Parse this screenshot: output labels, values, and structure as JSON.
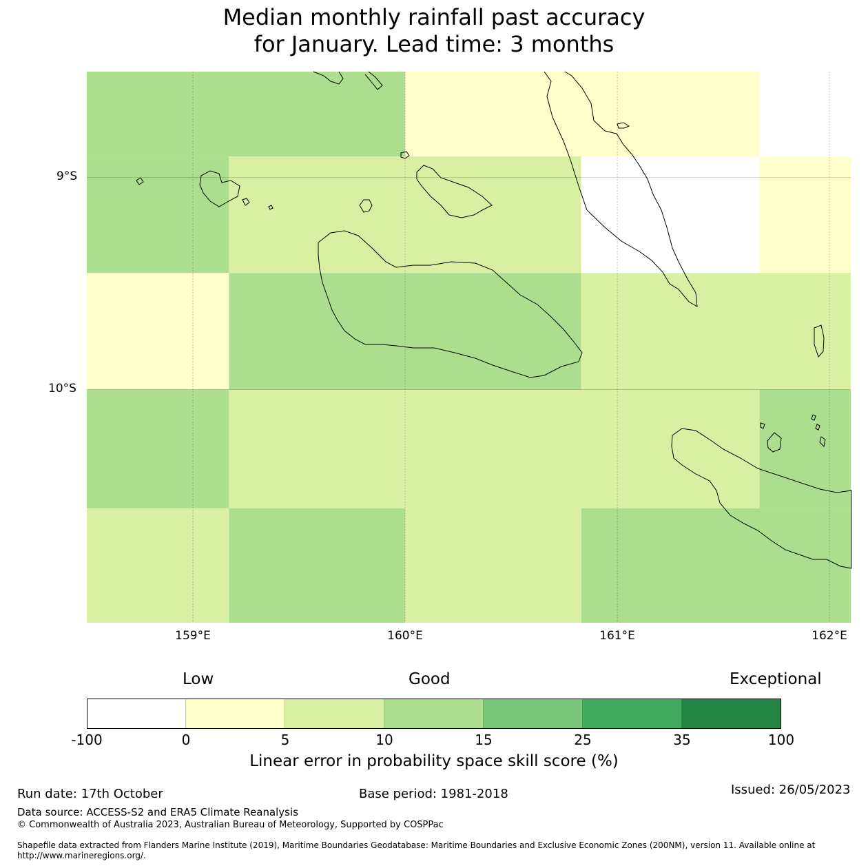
{
  "title": {
    "line1": "Median monthly rainfall past accuracy",
    "line2": "for January. Lead time: 3 months"
  },
  "map": {
    "lat_labels": [
      "9°S",
      "10°S"
    ],
    "lon_labels": [
      "159°E",
      "160°E",
      "161°E",
      "162°E"
    ],
    "lon_values": [
      159,
      160,
      161,
      162
    ],
    "lat_values": [
      -9,
      -10
    ],
    "extent": {
      "lon_min": 158.5,
      "lon_max": 162.1,
      "lat_min": -11.1,
      "lat_max": -8.5
    },
    "cells": [
      {
        "lon0": 158.5,
        "lon1": 160.0,
        "lat0": -8.9,
        "lat1": -8.5,
        "score_class": 3
      },
      {
        "lon0": 160.0,
        "lon1": 161.67,
        "lat0": -8.9,
        "lat1": -8.5,
        "score_class": 1
      },
      {
        "lon0": 161.67,
        "lon1": 162.1,
        "lat0": -8.9,
        "lat1": -8.5,
        "score_class": 0
      },
      {
        "lon0": 158.5,
        "lon1": 159.17,
        "lat0": -9.45,
        "lat1": -8.9,
        "score_class": 3
      },
      {
        "lon0": 159.17,
        "lon1": 160.83,
        "lat0": -9.45,
        "lat1": -8.9,
        "score_class": 2
      },
      {
        "lon0": 160.83,
        "lon1": 161.67,
        "lat0": -9.45,
        "lat1": -8.9,
        "score_class": 0
      },
      {
        "lon0": 161.67,
        "lon1": 162.1,
        "lat0": -9.45,
        "lat1": -8.9,
        "score_class": 1
      },
      {
        "lon0": 158.5,
        "lon1": 159.17,
        "lat0": -10.0,
        "lat1": -9.45,
        "score_class": 1
      },
      {
        "lon0": 159.17,
        "lon1": 160.83,
        "lat0": -10.0,
        "lat1": -9.45,
        "score_class": 3
      },
      {
        "lon0": 160.83,
        "lon1": 162.1,
        "lat0": -10.0,
        "lat1": -9.45,
        "score_class": 2
      },
      {
        "lon0": 158.5,
        "lon1": 159.17,
        "lat0": -10.56,
        "lat1": -10.0,
        "score_class": 3
      },
      {
        "lon0": 159.17,
        "lon1": 161.67,
        "lat0": -10.56,
        "lat1": -10.0,
        "score_class": 2
      },
      {
        "lon0": 161.67,
        "lon1": 162.1,
        "lat0": -10.56,
        "lat1": -10.0,
        "score_class": 3
      },
      {
        "lon0": 158.5,
        "lon1": 159.17,
        "lat0": -11.1,
        "lat1": -10.56,
        "score_class": 2
      },
      {
        "lon0": 159.17,
        "lon1": 160.0,
        "lat0": -11.1,
        "lat1": -10.56,
        "score_class": 3
      },
      {
        "lon0": 160.0,
        "lon1": 160.83,
        "lat0": -11.1,
        "lat1": -10.56,
        "score_class": 2
      },
      {
        "lon0": 160.83,
        "lon1": 162.1,
        "lat0": -11.1,
        "lat1": -10.56,
        "score_class": 3
      }
    ]
  },
  "legend": {
    "categories": [
      "Low",
      "Good",
      "Exceptional"
    ],
    "ticks": [
      "-100",
      "0",
      "5",
      "10",
      "15",
      "25",
      "35",
      "100"
    ],
    "colors": [
      "#ffffff",
      "#ffffcc",
      "#d9f0a3",
      "#addd8e",
      "#78c679",
      "#41ab5d",
      "#238443"
    ],
    "label": "Linear error in probability space skill score (%)"
  },
  "footer": {
    "run_date": "Run date: 17th October",
    "base_period": "Base period: 1981-2018",
    "issued": "Issued: 26/05/2023",
    "data_source": "Data source: ACCESS-S2 and ERA5 Climate Reanalysis",
    "copyright": "© Commonwealth of Australia 2023, Australian Bureau of Meteorology, Supported by COSPPac",
    "shapefile": "Shapefile data extracted from Flanders Marine Institute (2019), Maritime Boundaries Geodatabase: Maritime Boundaries and Exclusive Economic Zones (200NM), version 11. Available online at http://www.marineregions.org/."
  }
}
